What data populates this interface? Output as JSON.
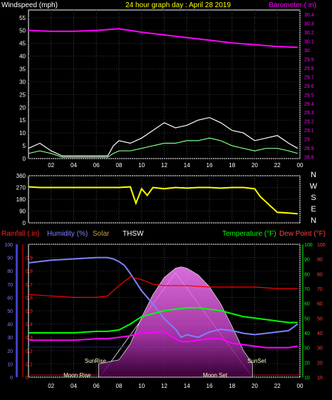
{
  "chart_data": [
    {
      "type": "line",
      "title": "24 hour graph day : April 28 2019",
      "left_axis_label": "Windspeed (mph)",
      "right_axis_label": "Barometer ( in)",
      "left_ylim": [
        0,
        58
      ],
      "left_ticks": [
        "0",
        "5",
        "10",
        "15",
        "20",
        "25",
        "30",
        "35",
        "40",
        "45",
        "50",
        "55"
      ],
      "right_ylim": [
        28.78,
        30.45
      ],
      "right_ticks": [
        "28.8",
        "28.9",
        "29",
        "29.1",
        "29.2",
        "29.3",
        "29.4",
        "29.5",
        "29.6",
        "29.7",
        "29.8",
        "29.9",
        "30",
        "30.1",
        "30.2",
        "30.3",
        "30.4"
      ],
      "x_ticks": [
        "02",
        "04",
        "06",
        "08",
        "10",
        "12",
        "14",
        "16",
        "18",
        "20",
        "22",
        "00"
      ],
      "series": [
        {
          "key": "barometer",
          "color": "#ff00ff",
          "x": [
            0,
            2,
            4,
            6,
            7,
            8,
            9,
            10,
            12,
            14,
            16,
            18,
            20,
            22,
            23.8
          ],
          "y": [
            30.22,
            30.21,
            30.21,
            30.22,
            30.23,
            30.24,
            30.22,
            30.2,
            30.17,
            30.14,
            30.11,
            30.08,
            30.06,
            30.04,
            30.03
          ]
        },
        {
          "key": "wind_gust",
          "color": "#ffffff",
          "x": [
            0,
            1,
            2,
            3,
            4,
            5,
            6,
            7,
            7.5,
            8,
            9,
            10,
            11,
            12,
            13,
            14,
            15,
            16,
            17,
            18,
            19,
            20,
            21,
            22,
            23,
            23.8
          ],
          "y": [
            4,
            6,
            3,
            1,
            1,
            1,
            1,
            1,
            5,
            7,
            6,
            8,
            11,
            14,
            12,
            13,
            15,
            16,
            14,
            11,
            10,
            7,
            8,
            9,
            6,
            4
          ]
        },
        {
          "key": "wind_avg",
          "color": "#7fff7f",
          "x": [
            0,
            1,
            2,
            3,
            4,
            5,
            6,
            7,
            7.5,
            8,
            9,
            10,
            11,
            12,
            13,
            14,
            15,
            16,
            17,
            18,
            19,
            20,
            21,
            22,
            23,
            23.8
          ],
          "y": [
            2,
            3,
            2,
            0.5,
            0.5,
            0.5,
            0.5,
            0.5,
            2,
            3,
            3,
            4,
            5,
            6,
            6,
            7,
            7,
            8,
            7,
            5,
            4,
            3,
            4,
            4,
            3,
            2
          ]
        }
      ]
    },
    {
      "type": "line",
      "yticks": [
        "360",
        "270",
        "180",
        "90",
        "0"
      ],
      "ylim": [
        0,
        360
      ],
      "compass": [
        "N",
        "W",
        "S",
        "E",
        "N"
      ],
      "x_ticks": [
        "02",
        "04",
        "06",
        "08",
        "10",
        "12",
        "14",
        "16",
        "18",
        "20",
        "22",
        "00"
      ],
      "series": [
        {
          "key": "wind_direction",
          "color": "#ffff00",
          "x": [
            0,
            1,
            2,
            3,
            4,
            5,
            6,
            7,
            8,
            9,
            9.5,
            10,
            10.5,
            11,
            12,
            13,
            14,
            15,
            16,
            17,
            18,
            19,
            20,
            20.5,
            21,
            22,
            23,
            23.8
          ],
          "y": [
            275,
            270,
            270,
            270,
            270,
            270,
            270,
            270,
            270,
            275,
            150,
            260,
            210,
            270,
            260,
            270,
            265,
            270,
            270,
            265,
            270,
            270,
            260,
            200,
            160,
            80,
            75,
            70
          ]
        }
      ]
    },
    {
      "type": "line",
      "legend": {
        "rainfall": "Rainfall (.in)",
        "humidity": "Humidity (%)",
        "solar": "Solar",
        "thsw": "THSW",
        "temperature": "Temperature (°F)",
        "dewpoint": "Dew Point (°F)"
      },
      "rain_ticks": [
        "0",
        "0.1",
        "0.2",
        "0.3",
        "0.4",
        "0.5",
        "0.6",
        "0.7",
        "0.8",
        "0.9"
      ],
      "humidity_ticks": [
        "0",
        "10",
        "20",
        "30",
        "40",
        "50",
        "60",
        "70",
        "80",
        "90",
        "100"
      ],
      "temp_ticks": [
        "10",
        "20",
        "30",
        "40",
        "50",
        "60",
        "70",
        "80",
        "90",
        "100"
      ],
      "x_ticks": [
        "02",
        "04",
        "06",
        "08",
        "10",
        "12",
        "14",
        "16",
        "18",
        "20",
        "22",
        "00"
      ],
      "temp_ylim": [
        10,
        100
      ],
      "annotations": {
        "sunrise": "SunRise",
        "sunset": "SunSet",
        "moonrise": "Moon Rise",
        "moonset": "Moon Set"
      },
      "series": [
        {
          "key": "humidity",
          "color": "#8080ff",
          "x": [
            0,
            2,
            4,
            6,
            7,
            7.5,
            8,
            8.5,
            9,
            10,
            11,
            12,
            13,
            13.5,
            14,
            15,
            16,
            17,
            18,
            19,
            20,
            21,
            22,
            23,
            23.8
          ],
          "y": [
            86,
            88,
            89,
            90,
            90,
            89,
            87,
            84,
            78,
            65,
            55,
            44,
            36,
            30,
            32,
            30,
            34,
            36,
            35,
            33,
            32,
            33,
            34,
            35,
            40
          ]
        },
        {
          "key": "temperature",
          "color": "#00ff00",
          "x": [
            0,
            2,
            4,
            6,
            7,
            8,
            9,
            10,
            11,
            12,
            13,
            14,
            15,
            16,
            17,
            18,
            19,
            20,
            21,
            22,
            23,
            23.8
          ],
          "y": [
            40,
            40,
            40,
            41,
            41,
            42,
            46,
            51,
            53,
            55,
            56,
            57,
            57,
            56,
            55,
            53,
            51,
            50,
            49,
            48,
            47,
            47
          ]
        },
        {
          "key": "dewpoint",
          "color": "#ff00ff",
          "x": [
            0,
            2,
            4,
            6,
            7,
            8,
            9,
            10,
            11,
            12,
            13,
            13.5,
            14,
            15,
            16,
            17,
            18,
            19,
            20,
            21,
            22,
            23,
            23.8
          ],
          "y": [
            35,
            35,
            35,
            36,
            36,
            37,
            38,
            40,
            40,
            41,
            36,
            34,
            34,
            35,
            36,
            36,
            33,
            32,
            31,
            30,
            30,
            30,
            31
          ]
        },
        {
          "key": "thsw",
          "color": "#ff0000",
          "x": [
            0,
            2,
            4,
            6,
            7,
            8,
            9,
            10,
            11,
            12,
            14,
            16,
            18,
            20,
            22,
            23.8
          ],
          "y": [
            66,
            65,
            64,
            64,
            65,
            72,
            78,
            76,
            73,
            72,
            72,
            71,
            71,
            71,
            70,
            70
          ]
        },
        {
          "key": "solar",
          "color": "#ffffff",
          "x": [
            6.2,
            8,
            9,
            10,
            11,
            12,
            13,
            13.5,
            14,
            15,
            16,
            17,
            18,
            19,
            19.8
          ],
          "y": [
            10,
            13,
            25,
            45,
            62,
            75,
            82,
            83,
            82,
            77,
            68,
            55,
            38,
            20,
            10
          ]
        }
      ]
    }
  ]
}
